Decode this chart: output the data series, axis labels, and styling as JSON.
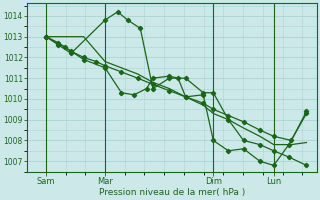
{
  "xlabel": "Pression niveau de la mer( hPa )",
  "ylim": [
    1006.5,
    1014.6
  ],
  "yticks": [
    1007,
    1008,
    1009,
    1010,
    1011,
    1012,
    1013,
    1014
  ],
  "xlim": [
    0,
    230
  ],
  "xtick_positions": [
    15,
    62,
    148,
    196
  ],
  "xtick_labels": [
    "Sam",
    "Mar",
    "Dim",
    "Lun"
  ],
  "vlines": [
    15,
    62,
    148,
    196
  ],
  "bg_color": "#cce8e8",
  "grid_color": "#aad4d4",
  "line_color": "#1a6618",
  "series1_x": [
    15,
    25,
    35,
    45,
    62,
    75,
    88,
    100,
    113,
    126,
    140,
    148,
    160,
    172,
    185,
    196,
    210,
    222
  ],
  "series1_y": [
    1013.0,
    1013.0,
    1013.0,
    1013.0,
    1011.8,
    1011.5,
    1011.2,
    1010.8,
    1010.5,
    1010.1,
    1009.7,
    1009.3,
    1009.0,
    1008.6,
    1008.2,
    1007.8,
    1007.8,
    1007.9
  ],
  "series2_x": [
    15,
    25,
    35,
    45,
    55,
    62,
    75,
    88,
    100,
    113,
    126,
    140,
    148,
    160,
    172,
    185,
    196,
    210,
    222
  ],
  "series2_y": [
    1013.0,
    1012.7,
    1012.3,
    1012.0,
    1011.8,
    1011.6,
    1011.3,
    1011.0,
    1010.7,
    1010.4,
    1010.1,
    1009.8,
    1009.5,
    1009.2,
    1008.9,
    1008.5,
    1008.2,
    1008.0,
    1009.4
  ],
  "series3_x": [
    15,
    30,
    45,
    62,
    75,
    85,
    95,
    100,
    113,
    120,
    126,
    140,
    148,
    160,
    172,
    185,
    196,
    208,
    222
  ],
  "series3_y": [
    1013.0,
    1012.5,
    1011.9,
    1011.5,
    1010.3,
    1010.2,
    1010.5,
    1011.0,
    1011.1,
    1011.0,
    1010.1,
    1010.2,
    1008.0,
    1007.5,
    1007.6,
    1007.0,
    1006.8,
    1007.8,
    1009.3
  ],
  "series4_x": [
    15,
    25,
    35,
    62,
    72,
    80,
    90,
    100,
    113,
    126,
    140,
    148,
    160,
    172,
    185,
    196,
    208,
    222
  ],
  "series4_y": [
    1013.0,
    1012.6,
    1012.2,
    1013.8,
    1014.2,
    1013.8,
    1013.4,
    1010.5,
    1011.0,
    1011.0,
    1010.3,
    1010.3,
    1009.0,
    1008.0,
    1007.8,
    1007.5,
    1007.2,
    1006.8
  ]
}
